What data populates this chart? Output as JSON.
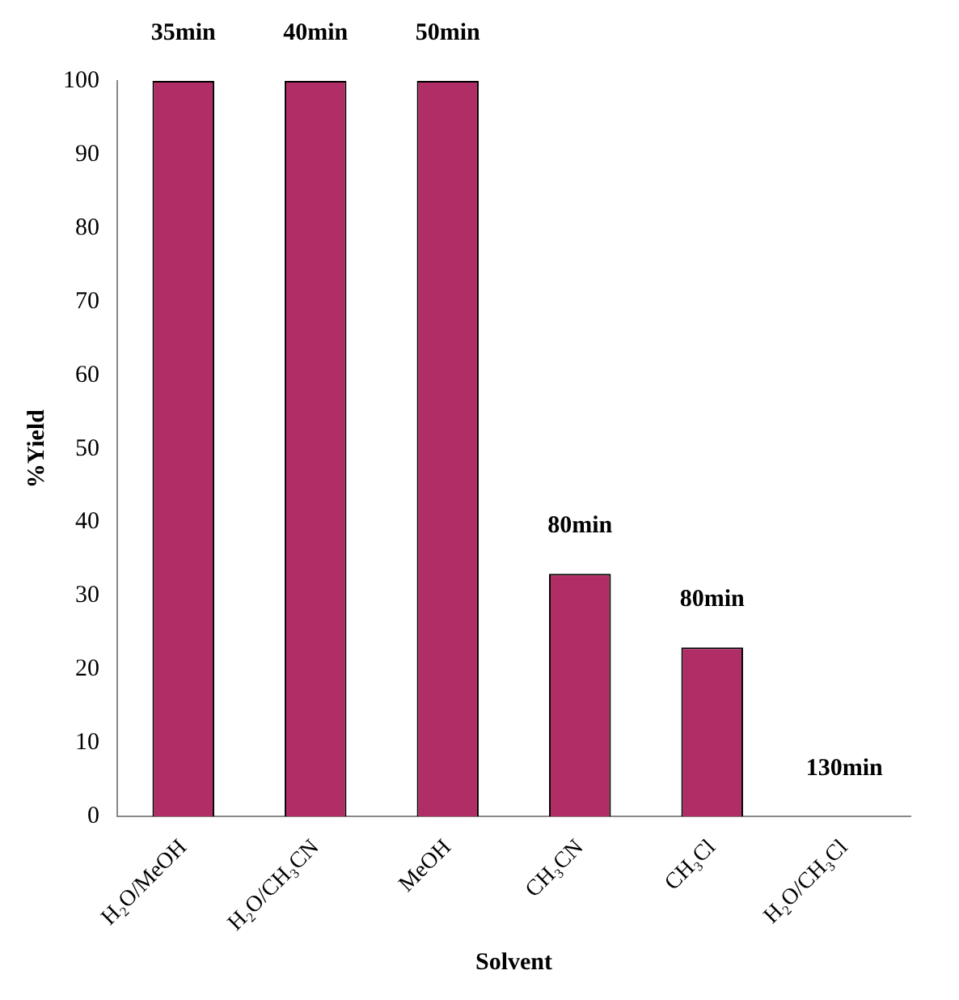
{
  "chart_data": {
    "type": "bar",
    "xlabel": "Solvent",
    "ylabel": "%Yield",
    "categories": [
      "H₂O/MeOH",
      "H₂O/CH₃CN",
      "MeOH",
      "CH₃CN",
      "CH₃Cl",
      "H₂O/CH₃Cl"
    ],
    "values": [
      100,
      100,
      100,
      33,
      23,
      0
    ],
    "annotations": [
      {
        "text": "35min",
        "x": "H₂O/MeOH",
        "y": 100
      },
      {
        "text": "40min",
        "x": "H₂O/CH₃CN",
        "y": 100
      },
      {
        "text": "50min",
        "x": "MeOH",
        "y": 100
      },
      {
        "text": "80min",
        "x": "CH₃CN",
        "y": 33
      },
      {
        "text": "80min",
        "x": "CH₃Cl",
        "y": 23
      },
      {
        "text": "130min",
        "x": "H₂O/CH₃Cl",
        "y": 0
      }
    ],
    "color": "#b02e65",
    "ylim": [
      0,
      100
    ],
    "yticks": [
      0,
      10,
      20,
      30,
      40,
      50,
      60,
      70,
      80,
      90,
      100
    ],
    "grid": false,
    "legend": false
  }
}
